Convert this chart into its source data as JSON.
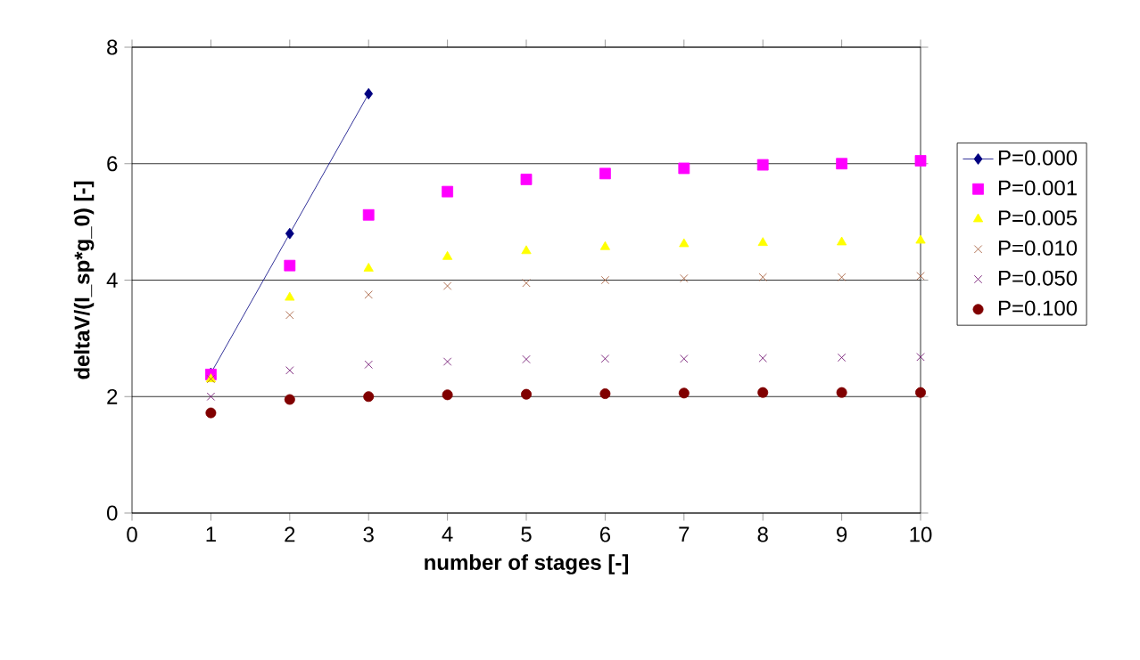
{
  "chart_data": {
    "type": "scatter",
    "xlabel": "number of stages [-]",
    "ylabel": "deltaV/(I_sp*g_0) [-]",
    "x": [
      1,
      2,
      3,
      4,
      5,
      6,
      7,
      8,
      9,
      10
    ],
    "xlim": [
      0,
      10
    ],
    "xticks": [
      0,
      1,
      2,
      3,
      4,
      5,
      6,
      7,
      8,
      9,
      10
    ],
    "ylim": [
      0,
      8
    ],
    "yticks": [
      0,
      2,
      4,
      6,
      8
    ],
    "grid": "y",
    "legend": "right",
    "series": [
      {
        "name": "P=0.000",
        "type": "line",
        "marker": "diamond",
        "line_style": "solid",
        "color": "#000080",
        "x": [
          1,
          2,
          3
        ],
        "values": [
          2.4,
          4.8,
          7.2
        ]
      },
      {
        "name": "P=0.001",
        "marker": "square",
        "color": "#ff00ff",
        "values": [
          2.38,
          4.25,
          5.12,
          5.52,
          5.73,
          5.83,
          5.92,
          5.98,
          6.0,
          6.05
        ]
      },
      {
        "name": "P=0.005",
        "marker": "triangle",
        "color": "#ffff00",
        "values": [
          2.3,
          3.7,
          4.2,
          4.4,
          4.5,
          4.57,
          4.62,
          4.64,
          4.65,
          4.68
        ]
      },
      {
        "name": "P=0.010",
        "marker": "cross",
        "color": "#a0522d",
        "values": [
          2.3,
          3.4,
          3.75,
          3.9,
          3.95,
          4.0,
          4.03,
          4.05,
          4.05,
          4.07
        ]
      },
      {
        "name": "P=0.050",
        "marker": "cross",
        "color": "#660066",
        "values": [
          2.0,
          2.45,
          2.55,
          2.6,
          2.64,
          2.65,
          2.65,
          2.66,
          2.67,
          2.68
        ]
      },
      {
        "name": "P=0.100",
        "marker": "circle",
        "color": "#800000",
        "values": [
          1.72,
          1.95,
          2.0,
          2.03,
          2.04,
          2.05,
          2.06,
          2.07,
          2.07,
          2.07
        ]
      }
    ]
  }
}
